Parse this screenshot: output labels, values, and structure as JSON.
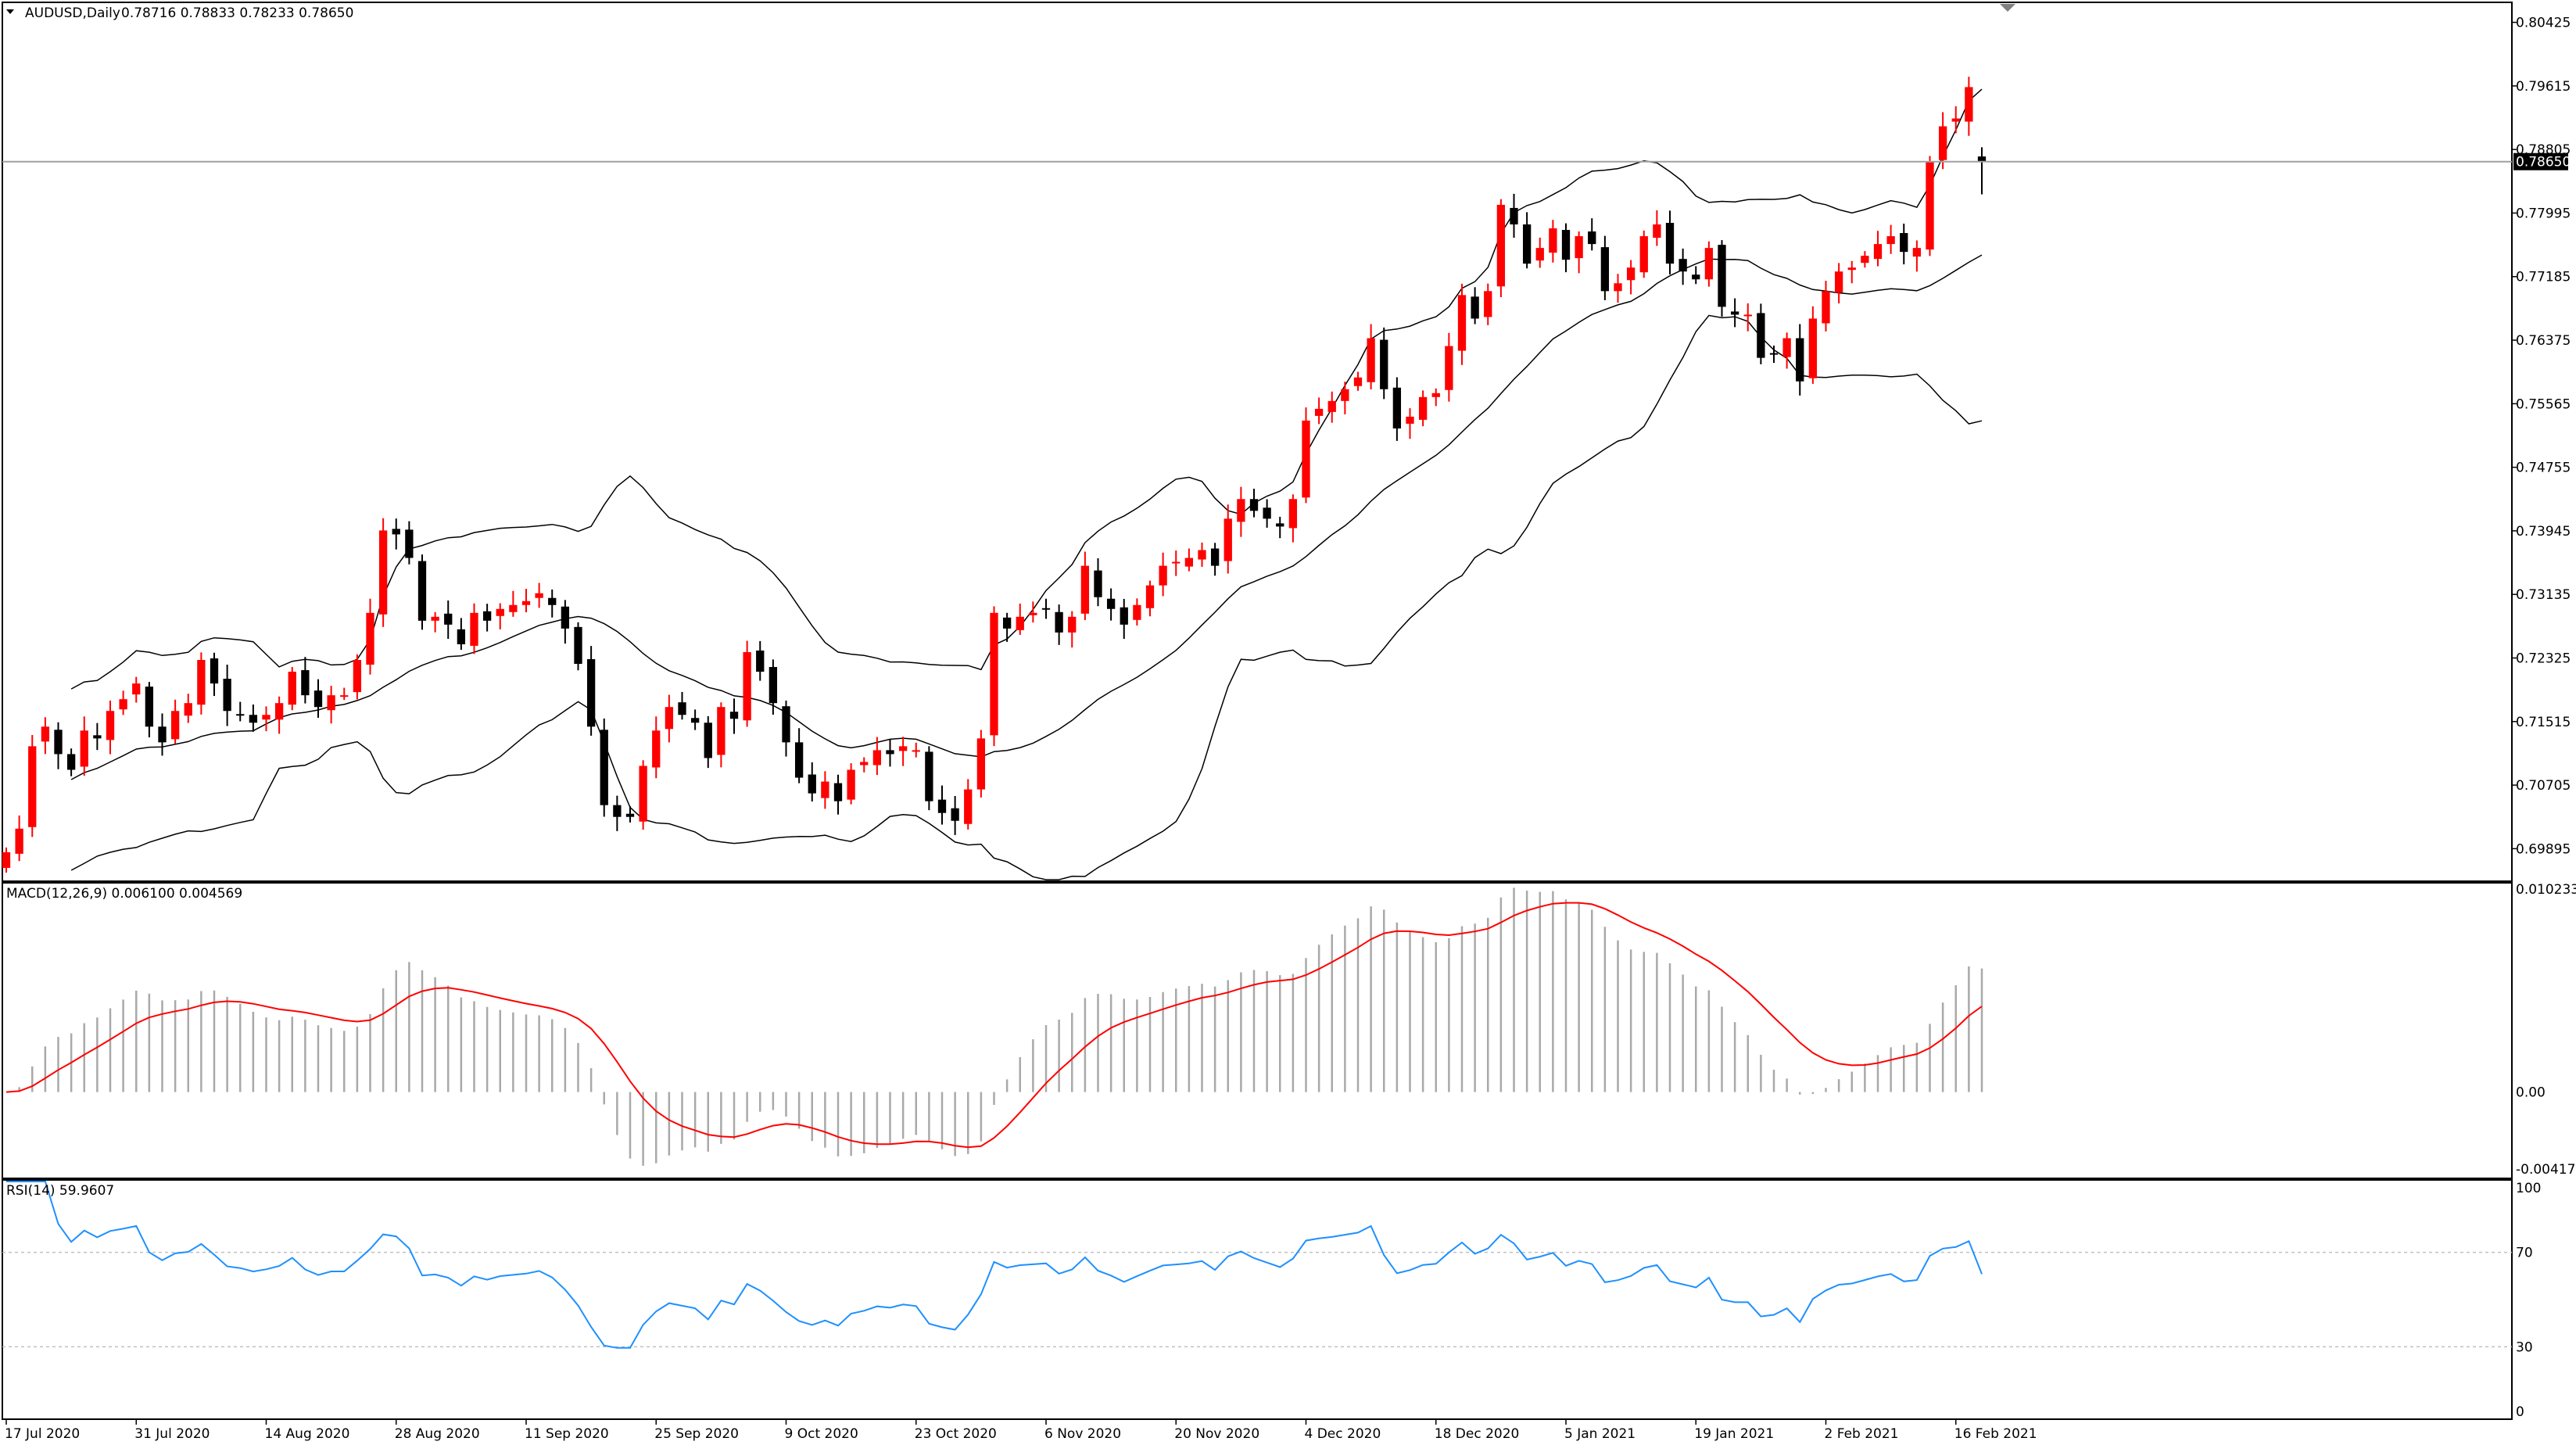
{
  "window": {
    "symbol_label": "AUDUSD,Daily",
    "ohlc_label": "0.78716 0.78833 0.78233 0.78650"
  },
  "colors": {
    "bull_candle": "#ff0000",
    "bear_candle": "#000000",
    "bands": "#000000",
    "macd_hist": "#a9a9a9",
    "macd_signal": "#ff0000",
    "rsi_line": "#1e90ff",
    "grid_level": "#c0c0c0",
    "price_line": "#a0a0a0"
  },
  "chart_data": [
    {
      "type": "candlestick",
      "title": "AUDUSD,Daily",
      "symbol": "AUDUSD",
      "timeframe": "Daily",
      "last_ohlc": {
        "open": 0.78716,
        "high": 0.78833,
        "low": 0.78233,
        "close": 0.7865
      },
      "current_price": 0.7865,
      "current_price_label": "0.78650",
      "ylim": [
        0.695,
        0.8066
      ],
      "y_ticks": [
        "0.80425",
        "0.79615",
        "0.78805",
        "0.77995",
        "0.77185",
        "0.76375",
        "0.75565",
        "0.74755",
        "0.73945",
        "0.73135",
        "0.72325",
        "0.71515",
        "0.70705",
        "0.69895"
      ],
      "x_labels": [
        "17 Jul 2020",
        "31 Jul 2020",
        "14 Aug 2020",
        "28 Aug 2020",
        "11 Sep 2020",
        "25 Sep 2020",
        "9 Oct 2020",
        "23 Oct 2020",
        "6 Nov 2020",
        "20 Nov 2020",
        "4 Dec 2020",
        "18 Dec 2020",
        "5 Jan 2021",
        "19 Jan 2021",
        "2 Feb 2021",
        "16 Feb 2021"
      ],
      "overlay": "Bollinger Bands (20, 2)",
      "closes": [
        0.6985,
        0.7015,
        0.712,
        0.7145,
        0.711,
        0.709,
        0.714,
        0.713,
        0.7165,
        0.718,
        0.72,
        0.7145,
        0.7125,
        0.7165,
        0.7175,
        0.723,
        0.72,
        0.7165,
        0.716,
        0.715,
        0.716,
        0.7175,
        0.7215,
        0.7185,
        0.717,
        0.7185,
        0.7185,
        0.723,
        0.729,
        0.7395,
        0.739,
        0.736,
        0.728,
        0.7285,
        0.7275,
        0.725,
        0.729,
        0.728,
        0.7295,
        0.73,
        0.7305,
        0.7315,
        0.73,
        0.727,
        0.7225,
        0.7145,
        0.7045,
        0.703,
        0.703,
        0.7095,
        0.714,
        0.717,
        0.716,
        0.715,
        0.7105,
        0.717,
        0.7155,
        0.724,
        0.7215,
        0.7175,
        0.7125,
        0.708,
        0.706,
        0.7075,
        0.705,
        0.709,
        0.71,
        0.7115,
        0.711,
        0.712,
        0.7115,
        0.705,
        0.7035,
        0.7025,
        0.7065,
        0.713,
        0.729,
        0.727,
        0.7285,
        0.729,
        0.7295,
        0.7265,
        0.7285,
        0.735,
        0.731,
        0.7295,
        0.7275,
        0.73,
        0.7325,
        0.735,
        0.7355,
        0.736,
        0.737,
        0.735,
        0.741,
        0.7435,
        0.742,
        0.741,
        0.74,
        0.7435,
        0.7535,
        0.755,
        0.756,
        0.7575,
        0.759,
        0.764,
        0.7575,
        0.7525,
        0.754,
        0.7565,
        0.757,
        0.763,
        0.7695,
        0.7665,
        0.77,
        0.781,
        0.7785,
        0.7735,
        0.7755,
        0.778,
        0.774,
        0.777,
        0.776,
        0.77,
        0.771,
        0.773,
        0.777,
        0.7785,
        0.7735,
        0.7725,
        0.7715,
        0.7755,
        0.768,
        0.767,
        0.767,
        0.7615,
        0.762,
        0.764,
        0.7585,
        0.7665,
        0.77,
        0.7725,
        0.773,
        0.7745,
        0.776,
        0.777,
        0.775,
        0.7755,
        0.7865,
        0.791,
        0.792,
        0.796,
        0.7865
      ],
      "macd": {
        "label": "MACD(12,26,9) 0.006100 0.004569",
        "macd_value": "0.006100",
        "signal_value": "0.004569",
        "ylim": [
          -0.004176,
          0.010233
        ],
        "y_ticks": [
          "0.010233",
          "0.00",
          "-0.004176"
        ]
      },
      "rsi": {
        "label": "RSI(14) 59.9607",
        "value": 59.9607,
        "period": 14,
        "levels": [
          70,
          30
        ],
        "ylim": [
          0,
          100
        ],
        "y_ticks": [
          "100",
          "70",
          "30",
          "0"
        ]
      }
    }
  ]
}
